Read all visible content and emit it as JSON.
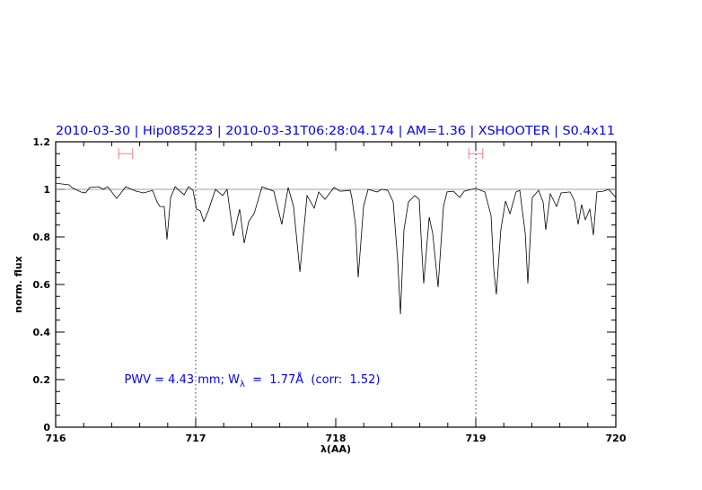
{
  "chart_data": {
    "type": "line",
    "title": "2010-03-30 | Hip085223 | 2010-03-31T06:28:04.174 | AM=1.36 | XSHOOTER | S0.4x11",
    "xlabel": "λ(AA)",
    "ylabel": "norm. flux",
    "xlim": [
      716,
      720
    ],
    "ylim": [
      0,
      1.2
    ],
    "xticks": [
      "716",
      "717",
      "718",
      "719",
      "720"
    ],
    "yticks": [
      "0",
      "0.2",
      "0.4",
      "0.6",
      "0.8",
      "1",
      "1.2"
    ],
    "continuum": 1.0,
    "dotted_vlines": [
      717,
      719
    ],
    "error_bars": [
      {
        "x": [
          716.45,
          716.55
        ],
        "y": 1.15
      },
      {
        "x": [
          718.95,
          719.05
        ],
        "y": 1.15
      }
    ],
    "annotation": {
      "pre": "PWV  =  4.43  mm;  W",
      "sub": "λ",
      "post": "  =  1.77Å  (corr:  1.52)",
      "x": 716.49,
      "y": 0.2
    },
    "colors": {
      "title": "#0000ff",
      "annotation": "#0000ff",
      "error_bars": "#f08080",
      "spectrum": "#000000",
      "continuum": "#808080"
    },
    "series": [
      {
        "x": [
          716.0,
          716.096,
          716.115,
          716.179,
          716.212,
          716.244,
          716.308,
          716.34,
          716.372,
          716.436,
          716.5,
          716.577,
          716.628,
          716.692,
          716.724,
          716.744,
          716.775,
          716.795,
          716.821,
          716.853,
          716.917,
          716.949,
          716.981,
          717.006,
          717.032,
          717.058,
          717.09,
          717.141,
          717.192,
          717.224,
          717.269,
          717.314,
          717.346,
          717.378,
          717.417,
          717.474,
          717.558,
          717.615,
          717.66,
          717.699,
          717.744,
          717.795,
          717.846,
          717.878,
          717.923,
          717.987,
          718.032,
          718.103,
          718.115,
          718.141,
          718.16,
          718.199,
          718.231,
          718.295,
          718.327,
          718.372,
          718.41,
          718.442,
          718.462,
          718.487,
          718.519,
          718.564,
          718.596,
          718.615,
          718.628,
          718.667,
          718.692,
          718.731,
          718.769,
          718.795,
          718.84,
          718.885,
          718.917,
          718.968,
          719.0,
          719.064,
          719.109,
          719.128,
          719.147,
          719.179,
          719.212,
          719.244,
          719.288,
          719.314,
          719.353,
          719.372,
          719.404,
          719.449,
          719.481,
          719.5,
          719.532,
          719.558,
          719.577,
          719.609,
          719.673,
          719.705,
          719.731,
          719.756,
          719.782,
          719.814,
          719.84,
          719.865,
          719.91,
          719.949,
          720.0
        ],
        "y": [
          1.026,
          1.019,
          1.008,
          0.989,
          0.985,
          1.008,
          1.011,
          1.0,
          1.011,
          0.962,
          1.011,
          0.992,
          0.985,
          0.996,
          0.947,
          0.928,
          0.928,
          0.789,
          0.966,
          1.011,
          0.977,
          1.011,
          0.996,
          0.917,
          0.91,
          0.864,
          0.91,
          1.0,
          0.974,
          1.0,
          0.804,
          0.917,
          0.774,
          0.864,
          0.898,
          1.011,
          0.992,
          0.853,
          1.008,
          0.928,
          0.653,
          0.974,
          0.921,
          0.989,
          0.958,
          1.008,
          0.992,
          0.996,
          0.966,
          0.853,
          0.63,
          0.928,
          1.0,
          0.989,
          1.0,
          0.996,
          0.947,
          0.702,
          0.475,
          0.83,
          0.947,
          0.974,
          0.958,
          0.74,
          0.604,
          0.883,
          0.815,
          0.589,
          0.928,
          0.989,
          0.992,
          0.966,
          0.992,
          1.0,
          1.004,
          0.989,
          0.891,
          0.664,
          0.558,
          0.83,
          0.951,
          0.898,
          0.989,
          0.996,
          0.815,
          0.604,
          0.966,
          0.996,
          0.947,
          0.83,
          0.981,
          0.951,
          0.928,
          0.985,
          0.989,
          0.951,
          0.853,
          0.936,
          0.872,
          0.917,
          0.808,
          0.989,
          0.992,
          1.0,
          0.966
        ]
      }
    ]
  }
}
